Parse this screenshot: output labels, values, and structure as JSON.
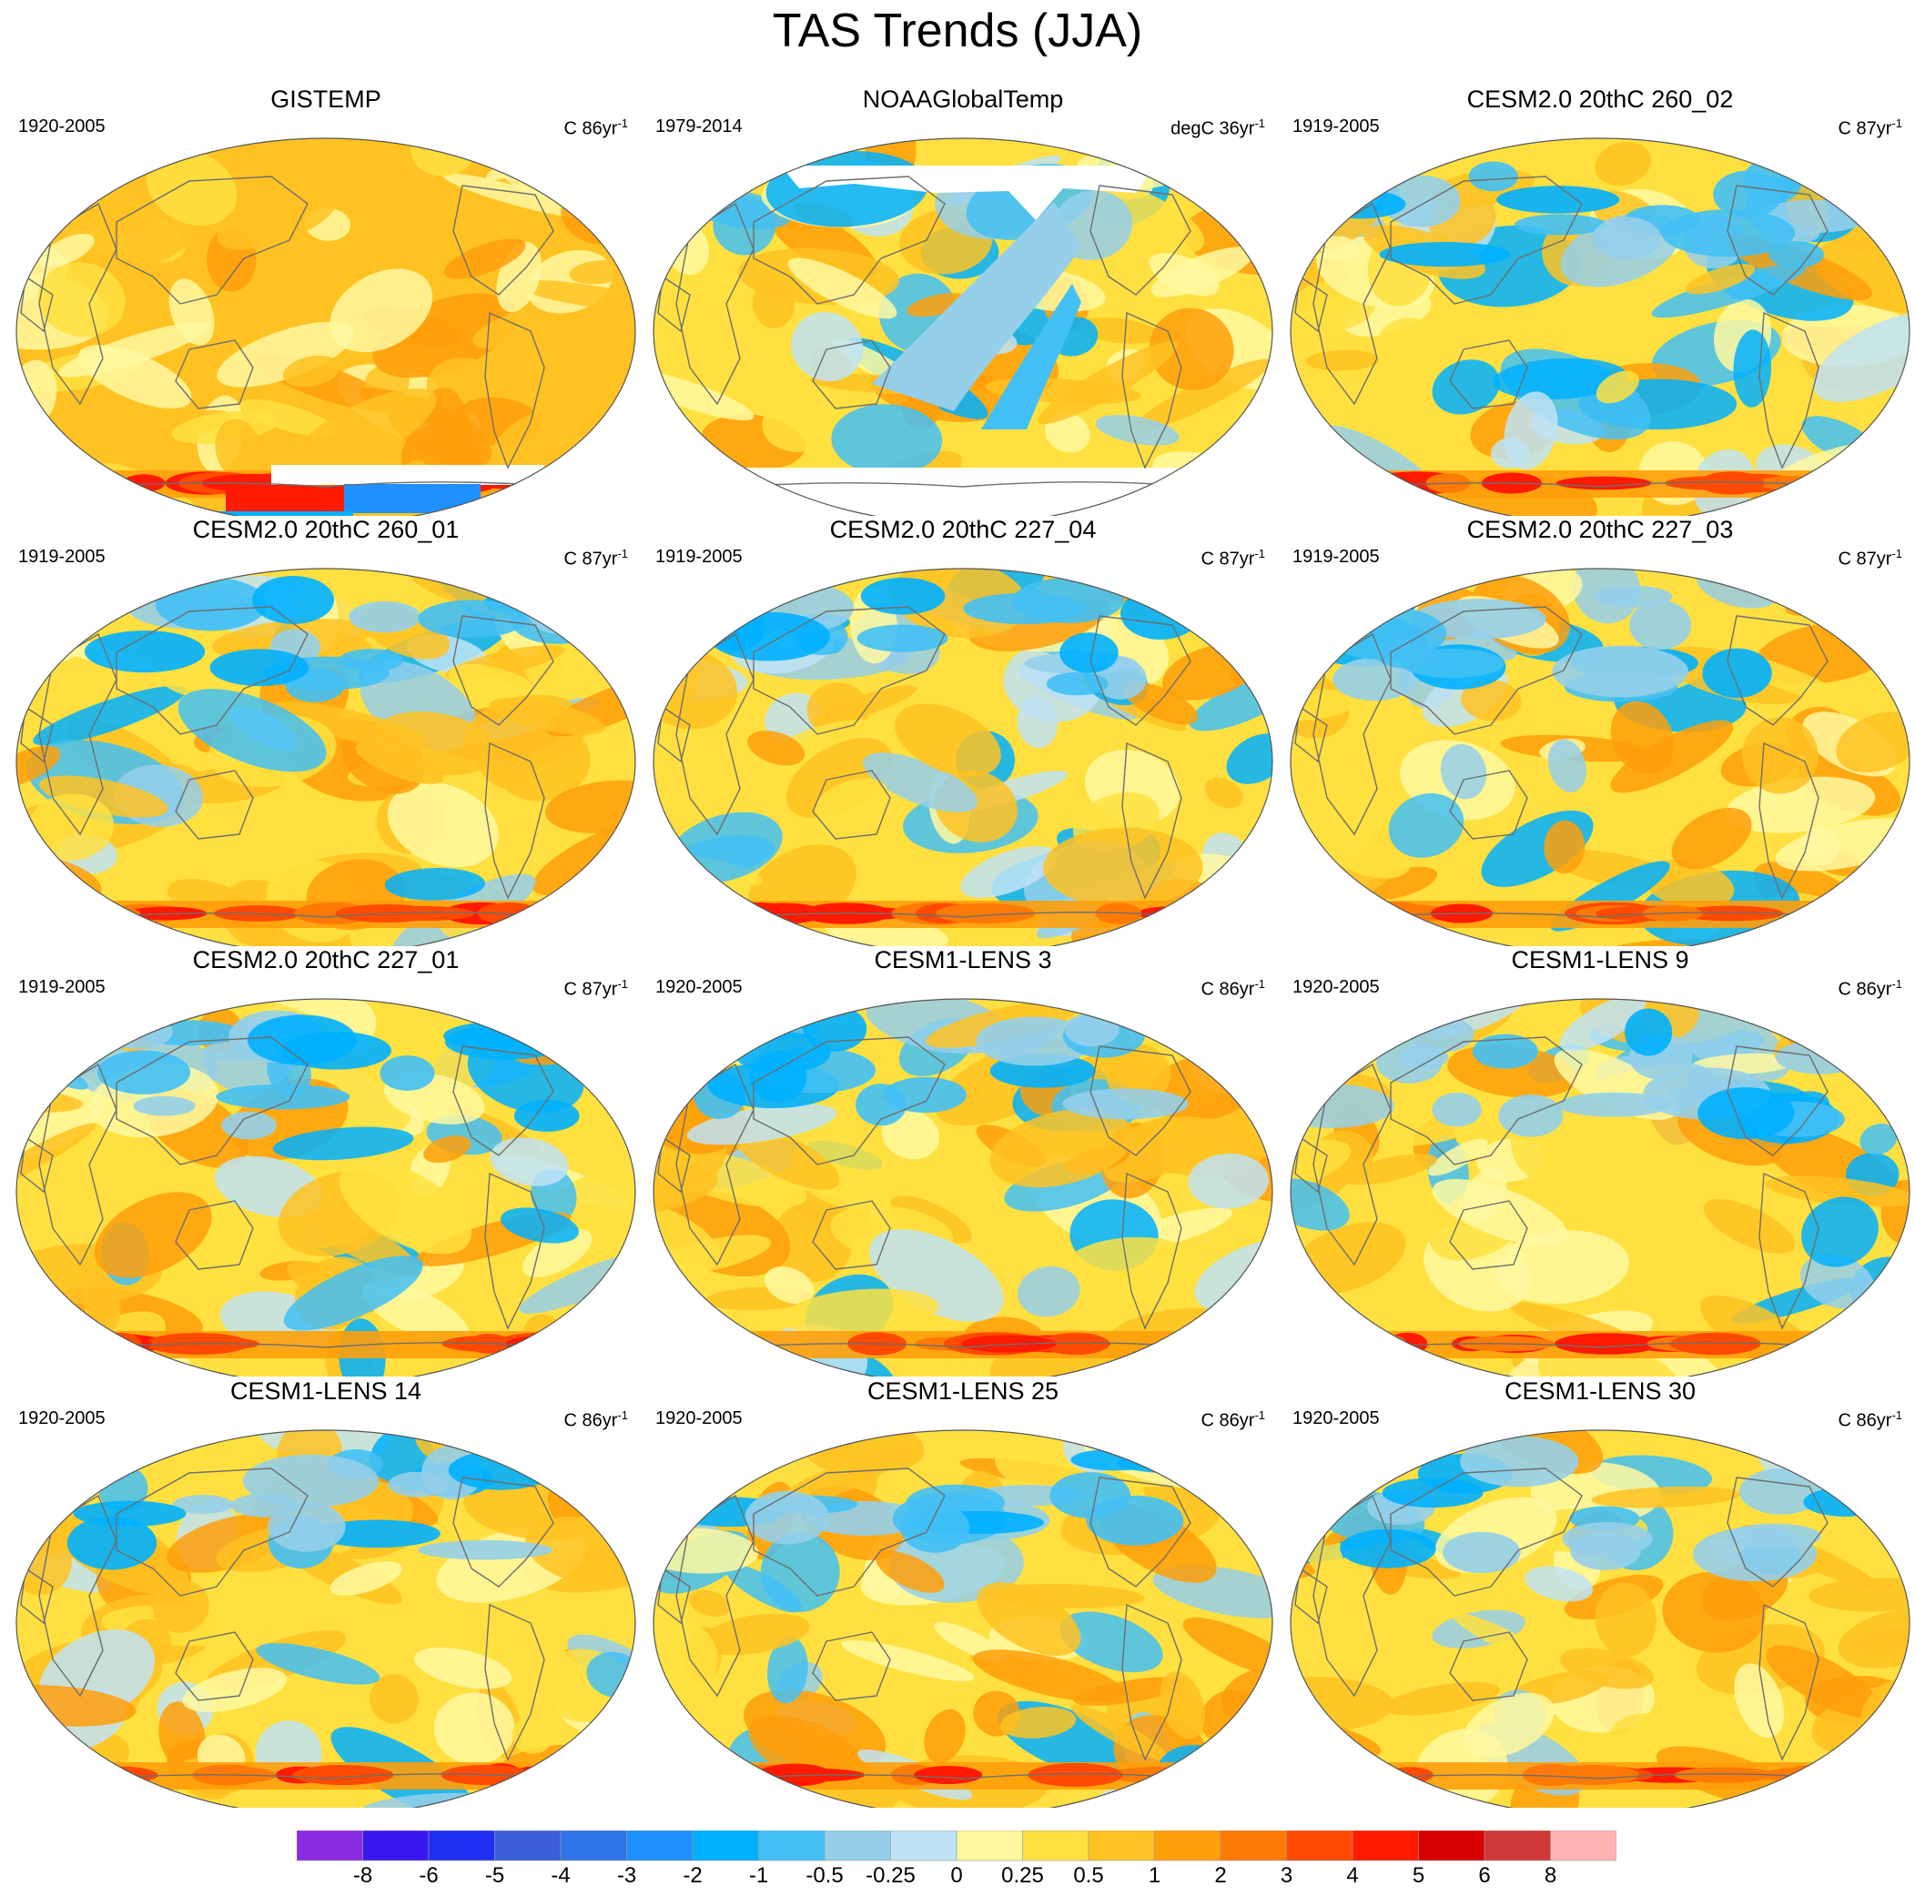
{
  "title": "TAS Trends (JJA)",
  "panels": [
    {
      "title": "GISTEMP",
      "period": "1920-2005",
      "units": "C 86yr",
      "units_exp": "-1",
      "variant": 0,
      "missing": "antarctic-partial"
    },
    {
      "title": "NOAAGlobalTemp",
      "period": "1979-2014",
      "units": "degC 36yr",
      "units_exp": "-1",
      "variant": 1,
      "missing": "polar"
    },
    {
      "title": "CESM2.0 20thC 260_02",
      "period": "1919-2005",
      "units": "C 87yr",
      "units_exp": "-1",
      "variant": 2,
      "missing": "none"
    },
    {
      "title": "CESM2.0 20thC 260_01",
      "period": "1919-2005",
      "units": "C 87yr",
      "units_exp": "-1",
      "variant": 3,
      "missing": "none"
    },
    {
      "title": "CESM2.0 20thC 227_04",
      "period": "1919-2005",
      "units": "C 87yr",
      "units_exp": "-1",
      "variant": 4,
      "missing": "none"
    },
    {
      "title": "CESM2.0 20thC 227_03",
      "period": "1919-2005",
      "units": "C 87yr",
      "units_exp": "-1",
      "variant": 5,
      "missing": "none"
    },
    {
      "title": "CESM2.0 20thC 227_01",
      "period": "1919-2005",
      "units": "C 87yr",
      "units_exp": "-1",
      "variant": 6,
      "missing": "none"
    },
    {
      "title": "CESM1-LENS 3",
      "period": "1920-2005",
      "units": "C 86yr",
      "units_exp": "-1",
      "variant": 7,
      "missing": "none"
    },
    {
      "title": "CESM1-LENS 9",
      "period": "1920-2005",
      "units": "C 86yr",
      "units_exp": "-1",
      "variant": 8,
      "missing": "none"
    },
    {
      "title": "CESM1-LENS 14",
      "period": "1920-2005",
      "units": "C 86yr",
      "units_exp": "-1",
      "variant": 9,
      "missing": "none"
    },
    {
      "title": "CESM1-LENS 25",
      "period": "1920-2005",
      "units": "C 86yr",
      "units_exp": "-1",
      "variant": 10,
      "missing": "none"
    },
    {
      "title": "CESM1-LENS 30",
      "period": "1920-2005",
      "units": "C 86yr",
      "units_exp": "-1",
      "variant": 11,
      "missing": "none"
    }
  ],
  "colorbar": {
    "colors": [
      "#8a2be2",
      "#3a17f0",
      "#1f2ff2",
      "#3a5fd8",
      "#2f74e6",
      "#1e90ff",
      "#00b0ff",
      "#43c0f5",
      "#95cfea",
      "#bfe3f5",
      "#fff8a0",
      "#ffe040",
      "#ffc222",
      "#ff9f0a",
      "#ff7a05",
      "#ff4a00",
      "#ff1a00",
      "#d80000",
      "#d03838",
      "#ffb4b4"
    ],
    "labels": [
      "-8",
      "-6",
      "-5",
      "-4",
      "-3",
      "-2",
      "-1",
      "-0.5",
      "-0.25",
      "0",
      "0.25",
      "0.5",
      "1",
      "2",
      "3",
      "4",
      "5",
      "6",
      "8"
    ]
  }
}
